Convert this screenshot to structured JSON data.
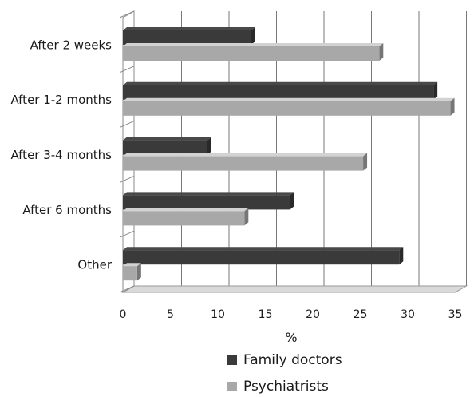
{
  "chart_data": {
    "type": "bar",
    "orientation": "horizontal",
    "categories": [
      "After 2 weeks",
      "After 1-2 months",
      "After 3-4 months",
      "After 6 months",
      "Other"
    ],
    "series": [
      {
        "name": "Family doctors",
        "values": [
          13.5,
          32.7,
          8.9,
          17.6,
          29.1
        ],
        "color": "#3a3a3a"
      },
      {
        "name": "Psychiatrists",
        "values": [
          27.0,
          34.5,
          25.3,
          12.8,
          1.5
        ],
        "color": "#a8a8a8"
      }
    ],
    "xlabel": "%",
    "xlim": [
      0,
      35
    ],
    "xticks": [
      "0",
      "5",
      "10",
      "15",
      "20",
      "25",
      "30",
      "35"
    ],
    "grid": "vertical",
    "legend_position": "bottom",
    "style": "3d"
  }
}
